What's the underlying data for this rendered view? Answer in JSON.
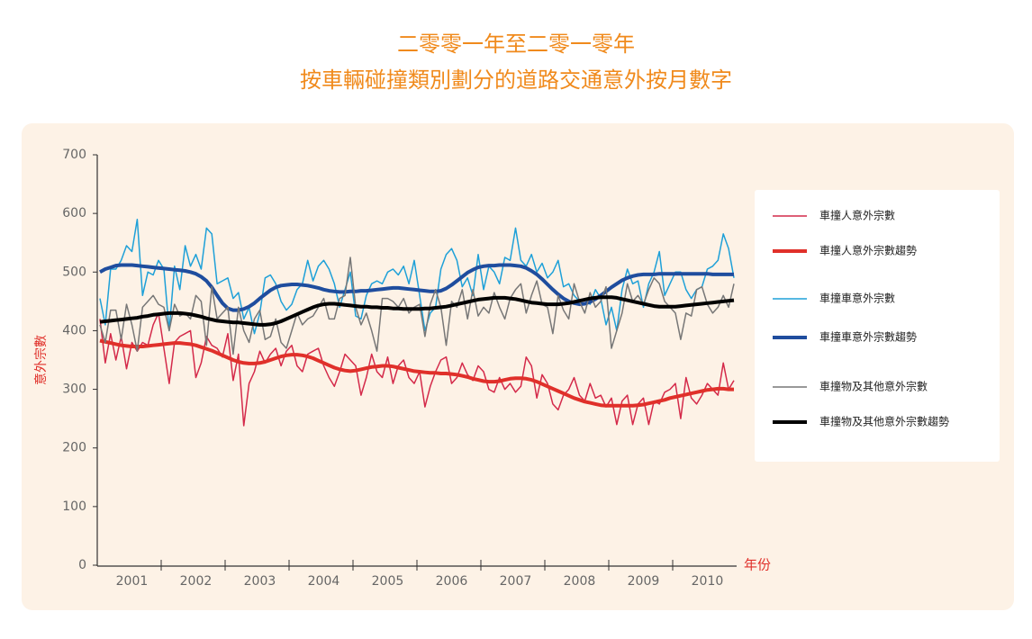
{
  "chart_data": {
    "type": "line",
    "title": "二零零一年至二零一零年",
    "subtitle": "按車輛碰撞類別劃分的道路交通意外按月數字",
    "y_label": "意外宗數",
    "x_label": "年份",
    "ylim": [
      0,
      700
    ],
    "yticks": [
      0,
      100,
      200,
      300,
      400,
      500,
      600,
      700
    ],
    "categories": [
      null,
      null,
      null,
      null,
      null,
      null,
      "2001",
      null,
      null,
      null,
      null,
      null,
      null,
      null,
      null,
      null,
      null,
      null,
      "2002",
      null,
      null,
      null,
      null,
      null,
      null,
      null,
      null,
      null,
      null,
      null,
      "2003",
      null,
      null,
      null,
      null,
      null,
      null,
      null,
      null,
      null,
      null,
      null,
      "2004",
      null,
      null,
      null,
      null,
      null,
      null,
      null,
      null,
      null,
      null,
      null,
      "2005",
      null,
      null,
      null,
      null,
      null,
      null,
      null,
      null,
      null,
      null,
      null,
      "2006",
      null,
      null,
      null,
      null,
      null,
      null,
      null,
      null,
      null,
      null,
      null,
      "2007",
      null,
      null,
      null,
      null,
      null,
      null,
      null,
      null,
      null,
      null,
      null,
      "2008",
      null,
      null,
      null,
      null,
      null,
      null,
      null,
      null,
      null,
      null,
      null,
      "2009",
      null,
      null,
      null,
      null,
      null,
      null,
      null,
      null,
      null,
      null,
      null,
      "2010",
      null,
      null,
      null,
      null,
      null
    ],
    "series": [
      {
        "name": "車撞人意外宗數",
        "color": "#d42a4a",
        "line_width": 1.5,
        "values": [
          420,
          345,
          395,
          350,
          390,
          335,
          380,
          365,
          380,
          375,
          410,
          430,
          370,
          310,
          380,
          390,
          395,
          400,
          320,
          345,
          390,
          375,
          370,
          355,
          395,
          315,
          360,
          238,
          310,
          330,
          365,
          345,
          360,
          370,
          340,
          365,
          375,
          340,
          330,
          360,
          365,
          370,
          340,
          320,
          305,
          330,
          360,
          350,
          340,
          290,
          320,
          360,
          330,
          320,
          355,
          310,
          340,
          350,
          320,
          310,
          330,
          270,
          305,
          330,
          350,
          355,
          310,
          320,
          345,
          325,
          315,
          340,
          330,
          300,
          295,
          320,
          300,
          310,
          295,
          305,
          355,
          340,
          285,
          325,
          310,
          275,
          265,
          290,
          300,
          320,
          290,
          280,
          310,
          285,
          290,
          270,
          285,
          240,
          280,
          290,
          240,
          275,
          285,
          240,
          280,
          275,
          295,
          300,
          310,
          250,
          320,
          285,
          275,
          290,
          310,
          300,
          290,
          345,
          300,
          315
        ]
      },
      {
        "name": "車撞人意外宗數趨勢",
        "color": "#e0302a",
        "line_width": 4,
        "values": [
          383,
          381,
          379,
          377,
          375,
          374,
          373,
          373,
          373,
          374,
          375,
          376,
          377,
          378,
          379,
          379,
          378,
          377,
          375,
          372,
          369,
          366,
          362,
          358,
          354,
          350,
          347,
          345,
          344,
          344,
          345,
          347,
          350,
          353,
          356,
          358,
          359,
          359,
          358,
          356,
          353,
          349,
          345,
          341,
          337,
          334,
          332,
          331,
          332,
          334,
          336,
          338,
          339,
          340,
          340,
          339,
          337,
          335,
          333,
          331,
          330,
          329,
          328,
          328,
          327,
          327,
          326,
          325,
          323,
          321,
          318,
          316,
          314,
          313,
          313,
          314,
          316,
          318,
          319,
          319,
          318,
          316,
          313,
          309,
          305,
          301,
          297,
          293,
          289,
          285,
          282,
          279,
          277,
          275,
          273,
          272,
          272,
          272,
          272,
          272,
          272,
          273,
          274,
          276,
          278,
          280,
          282,
          285,
          287,
          289,
          291,
          293,
          295,
          297,
          299,
          300,
          301,
          301,
          300,
          300
        ]
      },
      {
        "name": "車撞車意外宗數",
        "color": "#1ea0d8",
        "line_width": 1.5,
        "values": [
          455,
          410,
          505,
          505,
          520,
          545,
          535,
          590,
          460,
          500,
          495,
          520,
          505,
          400,
          510,
          470,
          545,
          510,
          530,
          505,
          575,
          565,
          480,
          485,
          490,
          455,
          465,
          420,
          440,
          395,
          430,
          490,
          495,
          480,
          450,
          435,
          445,
          470,
          480,
          520,
          485,
          510,
          520,
          505,
          480,
          440,
          470,
          500,
          425,
          420,
          460,
          480,
          485,
          480,
          500,
          505,
          495,
          510,
          480,
          520,
          460,
          400,
          430,
          440,
          505,
          530,
          540,
          520,
          475,
          490,
          460,
          530,
          470,
          510,
          500,
          480,
          525,
          520,
          575,
          520,
          510,
          530,
          500,
          515,
          490,
          500,
          520,
          475,
          480,
          460,
          450,
          455,
          445,
          470,
          455,
          410,
          440,
          400,
          470,
          505,
          480,
          485,
          440,
          480,
          500,
          535,
          460,
          480,
          500,
          500,
          470,
          455,
          470,
          475,
          505,
          510,
          520,
          565,
          540,
          490
        ]
      },
      {
        "name": "車撞車意外宗數趨勢",
        "color": "#1f4d9e",
        "line_width": 4,
        "values": [
          500,
          505,
          508,
          511,
          512,
          512,
          512,
          511,
          510,
          509,
          508,
          507,
          506,
          505,
          504,
          503,
          502,
          500,
          497,
          492,
          485,
          474,
          460,
          447,
          438,
          435,
          435,
          437,
          441,
          447,
          455,
          462,
          469,
          474,
          477,
          478,
          479,
          479,
          478,
          477,
          475,
          473,
          470,
          468,
          467,
          466,
          466,
          467,
          467,
          468,
          468,
          469,
          470,
          471,
          472,
          473,
          473,
          472,
          471,
          470,
          469,
          468,
          467,
          467,
          468,
          472,
          478,
          485,
          492,
          499,
          504,
          508,
          510,
          511,
          511,
          512,
          512,
          512,
          511,
          510,
          507,
          502,
          496,
          488,
          479,
          470,
          462,
          455,
          450,
          447,
          445,
          446,
          449,
          454,
          460,
          467,
          474,
          480,
          486,
          490,
          493,
          495,
          496,
          496,
          496,
          497,
          497,
          497,
          497,
          497,
          497,
          497,
          497,
          497,
          497,
          496,
          496,
          496,
          496,
          496
        ]
      },
      {
        "name": "車撞物及其他意外宗數",
        "color": "#777777",
        "line_width": 1.5,
        "values": [
          410,
          380,
          435,
          435,
          385,
          445,
          410,
          365,
          440,
          450,
          460,
          445,
          440,
          400,
          445,
          425,
          430,
          420,
          460,
          450,
          375,
          475,
          420,
          430,
          440,
          360,
          440,
          400,
          380,
          420,
          435,
          385,
          390,
          420,
          380,
          370,
          400,
          430,
          410,
          420,
          425,
          440,
          455,
          420,
          420,
          455,
          460,
          525,
          440,
          410,
          430,
          400,
          365,
          455,
          455,
          450,
          440,
          455,
          430,
          440,
          445,
          390,
          445,
          470,
          440,
          375,
          450,
          440,
          470,
          420,
          470,
          425,
          440,
          430,
          465,
          440,
          420,
          455,
          470,
          480,
          430,
          460,
          485,
          445,
          440,
          395,
          460,
          435,
          420,
          480,
          450,
          430,
          465,
          440,
          450,
          475,
          370,
          400,
          430,
          480,
          450,
          460,
          445,
          470,
          490,
          480,
          450,
          440,
          430,
          385,
          430,
          425,
          470,
          475,
          445,
          430,
          440,
          460,
          440,
          480
        ]
      },
      {
        "name": "車撞物及其他意外宗數趨勢",
        "color": "#000000",
        "line_width": 4,
        "values": [
          415,
          416,
          417,
          418,
          419,
          420,
          421,
          422,
          424,
          425,
          427,
          428,
          429,
          430,
          430,
          430,
          429,
          428,
          426,
          424,
          421,
          419,
          417,
          416,
          415,
          414,
          414,
          413,
          412,
          411,
          410,
          410,
          411,
          413,
          416,
          420,
          424,
          428,
          432,
          436,
          440,
          443,
          445,
          446,
          446,
          445,
          444,
          443,
          442,
          441,
          441,
          440,
          440,
          439,
          439,
          438,
          438,
          437,
          437,
          437,
          437,
          438,
          438,
          439,
          440,
          441,
          443,
          445,
          447,
          449,
          451,
          453,
          454,
          455,
          456,
          456,
          456,
          455,
          454,
          452,
          450,
          448,
          447,
          446,
          445,
          445,
          445,
          446,
          447,
          449,
          451,
          453,
          455,
          456,
          457,
          457,
          457,
          456,
          454,
          452,
          450,
          448,
          446,
          444,
          442,
          441,
          441,
          441,
          441,
          442,
          443,
          444,
          445,
          446,
          447,
          448,
          449,
          450,
          451,
          452
        ]
      }
    ]
  }
}
